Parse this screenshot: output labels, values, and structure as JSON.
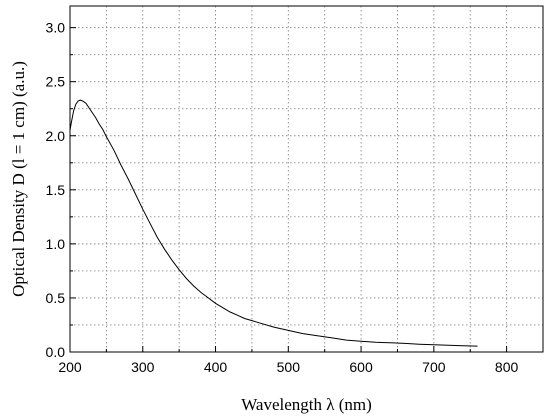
{
  "chart_data": {
    "type": "line",
    "title": "",
    "xlabel": "Wavelength λ (nm)",
    "ylabel": "Optical Density D (l = 1 cm) (a.u.)",
    "xlim": [
      200,
      850
    ],
    "ylim": [
      0.0,
      3.2
    ],
    "grid": true,
    "x_ticks": [
      200,
      300,
      400,
      500,
      600,
      700,
      800
    ],
    "x_tick_labels": [
      "200",
      "300",
      "400",
      "500",
      "600",
      "700",
      "800"
    ],
    "x_minor_ticks": [
      250,
      350,
      450,
      550,
      650,
      750
    ],
    "y_ticks": [
      0.0,
      0.5,
      1.0,
      1.5,
      2.0,
      2.5,
      3.0
    ],
    "y_tick_labels": [
      "0.0",
      "0.5",
      "1.0",
      "1.5",
      "2.0",
      "2.5",
      "3.0"
    ],
    "y_minor_ticks": [
      0.25,
      0.75,
      1.25,
      1.75,
      2.25,
      2.75
    ],
    "series": [
      {
        "x": [
          200,
          202,
          205,
          208,
          211,
          214,
          218,
          222,
          226,
          230,
          235,
          240,
          245,
          250,
          260,
          270,
          280,
          290,
          300,
          310,
          320,
          330,
          340,
          350,
          360,
          370,
          380,
          390,
          400,
          410,
          420,
          430,
          440,
          450,
          460,
          480,
          500,
          520,
          540,
          560,
          580,
          600,
          620,
          640,
          660,
          680,
          700,
          720,
          740,
          760
        ],
        "y": [
          2.05,
          2.13,
          2.23,
          2.29,
          2.32,
          2.33,
          2.32,
          2.3,
          2.26,
          2.22,
          2.17,
          2.11,
          2.06,
          1.99,
          1.87,
          1.73,
          1.6,
          1.46,
          1.32,
          1.19,
          1.06,
          0.95,
          0.85,
          0.76,
          0.68,
          0.61,
          0.55,
          0.5,
          0.45,
          0.41,
          0.37,
          0.34,
          0.31,
          0.29,
          0.27,
          0.23,
          0.2,
          0.17,
          0.15,
          0.13,
          0.11,
          0.1,
          0.09,
          0.085,
          0.08,
          0.072,
          0.067,
          0.062,
          0.058,
          0.055
        ],
        "color": "#000000"
      }
    ]
  }
}
